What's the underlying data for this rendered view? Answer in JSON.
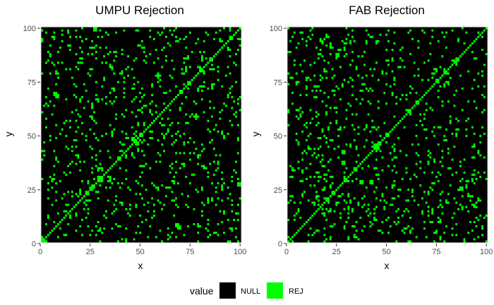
{
  "chart_data": [
    {
      "type": "heatmap",
      "title": "UMPU Rejection",
      "xlabel": "x",
      "ylabel": "y",
      "xlim": [
        0,
        101
      ],
      "ylim": [
        0,
        101
      ],
      "xticks": [
        "0",
        "25",
        "50",
        "75",
        "100"
      ],
      "yticks": [
        "0",
        "25",
        "50",
        "75",
        "100"
      ],
      "grid_size": 100,
      "diagonal": "REJ",
      "seed": 7,
      "rej_fraction": 0.085,
      "rej_blocks": [
        {
          "x": 29,
          "y": 29,
          "size": 3
        },
        {
          "x": 50,
          "y": 50,
          "size": 2
        },
        {
          "x": 85,
          "y": 85,
          "size": 2
        },
        {
          "x": 95,
          "y": 95,
          "size": 2
        },
        {
          "x": 80,
          "y": 80,
          "size": 2
        },
        {
          "x": 7,
          "y": 69,
          "size": 2
        },
        {
          "x": 68,
          "y": 8,
          "size": 2
        },
        {
          "x": 46,
          "y": 48,
          "size": 2
        }
      ]
    },
    {
      "type": "heatmap",
      "title": "FAB Rejection",
      "xlabel": "x",
      "ylabel": "y",
      "xlim": [
        0,
        101
      ],
      "ylim": [
        0,
        101
      ],
      "xticks": [
        "0",
        "25",
        "50",
        "75",
        "100"
      ],
      "yticks": [
        "0",
        "25",
        "50",
        "75",
        "100"
      ],
      "grid_size": 100,
      "diagonal": "REJ",
      "seed": 23,
      "rej_fraction": 0.085,
      "rej_blocks": [
        {
          "x": 29,
          "y": 29,
          "size": 2
        },
        {
          "x": 28,
          "y": 42,
          "size": 2
        },
        {
          "x": 42,
          "y": 28,
          "size": 2
        },
        {
          "x": 45,
          "y": 45,
          "size": 2
        },
        {
          "x": 50,
          "y": 50,
          "size": 2
        },
        {
          "x": 61,
          "y": 61,
          "size": 2
        },
        {
          "x": 79,
          "y": 79,
          "size": 2
        }
      ]
    }
  ],
  "legend": {
    "title": "value",
    "entries": [
      {
        "label": "NULL",
        "color": "#000000"
      },
      {
        "label": "REJ",
        "color": "#00ff00"
      }
    ]
  },
  "colors": {
    "null": "#000000",
    "rej": "#00ff00",
    "panel_background": "#ebebeb",
    "grid": "#ffffff"
  }
}
